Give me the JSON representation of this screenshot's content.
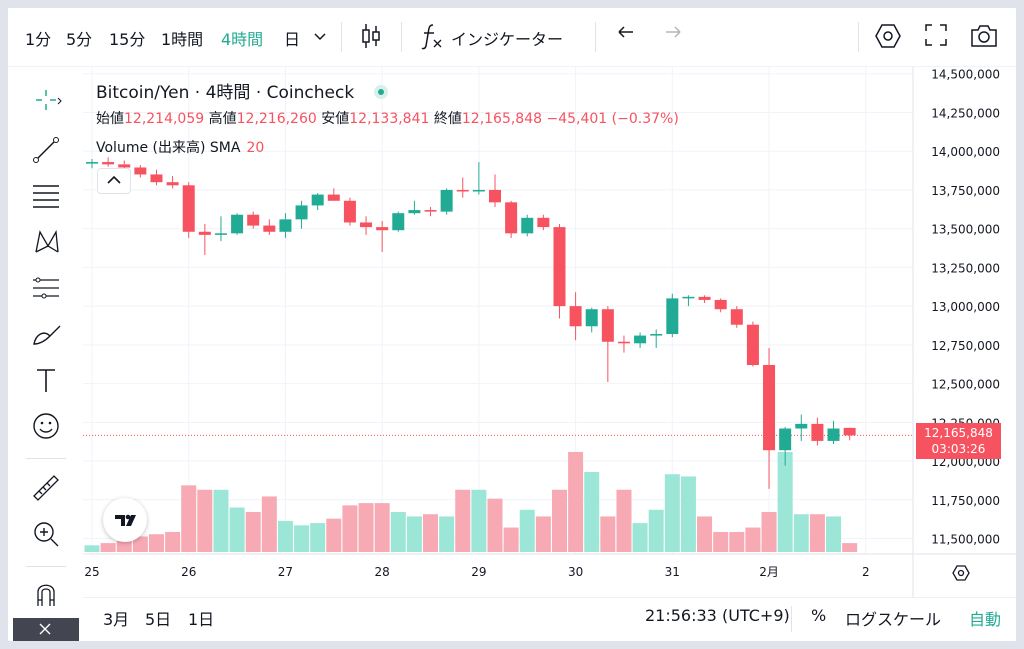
{
  "toolbar": {
    "intervals": [
      "1分",
      "5分",
      "15分",
      "1時間",
      "4時間",
      "日"
    ],
    "active_interval": "4時間",
    "indicators_label": "インジケーター"
  },
  "legend": {
    "symbol": "Bitcoin/Yen · 4時間 · Coincheck",
    "open_label": "始値",
    "open": "12,214,059",
    "high_label": "高値",
    "high": "12,216,260",
    "low_label": "安値",
    "low": "12,133,841",
    "close_label": "終値",
    "close": "12,165,848",
    "change": "−45,401 (−0.37%)",
    "volume_label": "Volume (出来高)",
    "sma_label": "SMA",
    "sma_length": "20"
  },
  "price_scale": {
    "current_price": "12,165,848",
    "countdown": "03:03:26"
  },
  "bottom": {
    "ranges": [
      "3月",
      "5日",
      "1日"
    ],
    "time": "21:56:33 (UTC+9)",
    "percent": "%",
    "log": "ログスケール",
    "auto": "自動"
  },
  "colors": {
    "up": "#22ab94",
    "down": "#f7525f",
    "up_volume": "#9be6d6",
    "down_volume": "#f7a9b4",
    "active": "#22ab94"
  },
  "chart_data": {
    "type": "candlestick",
    "title": "Bitcoin/Yen · 4時間 · Coincheck",
    "ylim": [
      11400000,
      14550000
    ],
    "yticks": [
      14500000,
      14250000,
      14000000,
      13750000,
      13500000,
      13250000,
      13000000,
      12750000,
      12500000,
      12250000,
      12000000,
      11750000,
      11500000
    ],
    "ytick_labels": [
      "14,500,000",
      "14,250,000",
      "14,000,000",
      "13,750,000",
      "13,500,000",
      "13,250,000",
      "13,000,000",
      "12,750,000",
      "12,500,000",
      "12,250,000",
      "12,000,000",
      "11,750,000",
      "11,500,000"
    ],
    "xtick_labels": [
      "25",
      "26",
      "27",
      "28",
      "29",
      "30",
      "31",
      "2月",
      "2"
    ],
    "xtick_index": [
      0,
      6,
      12,
      18,
      24,
      30,
      36,
      42,
      48
    ],
    "current_price": 12165848,
    "candles": [
      {
        "o": 13920000,
        "h": 13950000,
        "l": 13890000,
        "c": 13930000
      },
      {
        "o": 13930000,
        "h": 13960000,
        "l": 13900000,
        "c": 13915000
      },
      {
        "o": 13915000,
        "h": 13940000,
        "l": 13880000,
        "c": 13895000
      },
      {
        "o": 13895000,
        "h": 13910000,
        "l": 13830000,
        "c": 13850000
      },
      {
        "o": 13850000,
        "h": 13880000,
        "l": 13780000,
        "c": 13800000
      },
      {
        "o": 13800000,
        "h": 13840000,
        "l": 13760000,
        "c": 13780000
      },
      {
        "o": 13780000,
        "h": 13800000,
        "l": 13440000,
        "c": 13480000
      },
      {
        "o": 13480000,
        "h": 13530000,
        "l": 13330000,
        "c": 13460000
      },
      {
        "o": 13460000,
        "h": 13580000,
        "l": 13420000,
        "c": 13470000
      },
      {
        "o": 13470000,
        "h": 13600000,
        "l": 13460000,
        "c": 13590000
      },
      {
        "o": 13590000,
        "h": 13610000,
        "l": 13500000,
        "c": 13520000
      },
      {
        "o": 13520000,
        "h": 13560000,
        "l": 13460000,
        "c": 13480000
      },
      {
        "o": 13480000,
        "h": 13600000,
        "l": 13440000,
        "c": 13560000
      },
      {
        "o": 13560000,
        "h": 13680000,
        "l": 13500000,
        "c": 13650000
      },
      {
        "o": 13650000,
        "h": 13730000,
        "l": 13620000,
        "c": 13720000
      },
      {
        "o": 13720000,
        "h": 13760000,
        "l": 13690000,
        "c": 13680000
      },
      {
        "o": 13680000,
        "h": 13700000,
        "l": 13520000,
        "c": 13540000
      },
      {
        "o": 13540000,
        "h": 13580000,
        "l": 13460000,
        "c": 13510000
      },
      {
        "o": 13510000,
        "h": 13550000,
        "l": 13350000,
        "c": 13490000
      },
      {
        "o": 13490000,
        "h": 13610000,
        "l": 13480000,
        "c": 13600000
      },
      {
        "o": 13600000,
        "h": 13680000,
        "l": 13590000,
        "c": 13620000
      },
      {
        "o": 13620000,
        "h": 13640000,
        "l": 13580000,
        "c": 13610000
      },
      {
        "o": 13610000,
        "h": 13760000,
        "l": 13590000,
        "c": 13750000
      },
      {
        "o": 13750000,
        "h": 13830000,
        "l": 13700000,
        "c": 13740000
      },
      {
        "o": 13740000,
        "h": 13930000,
        "l": 13720000,
        "c": 13750000
      },
      {
        "o": 13750000,
        "h": 13850000,
        "l": 13640000,
        "c": 13670000
      },
      {
        "o": 13670000,
        "h": 13680000,
        "l": 13440000,
        "c": 13470000
      },
      {
        "o": 13470000,
        "h": 13590000,
        "l": 13450000,
        "c": 13570000
      },
      {
        "o": 13570000,
        "h": 13590000,
        "l": 13490000,
        "c": 13510000
      },
      {
        "o": 13510000,
        "h": 13530000,
        "l": 12920000,
        "c": 13000000
      },
      {
        "o": 13000000,
        "h": 13090000,
        "l": 12780000,
        "c": 12870000
      },
      {
        "o": 12870000,
        "h": 12990000,
        "l": 12830000,
        "c": 12980000
      },
      {
        "o": 12980000,
        "h": 13000000,
        "l": 12510000,
        "c": 12770000
      },
      {
        "o": 12770000,
        "h": 12810000,
        "l": 12700000,
        "c": 12760000
      },
      {
        "o": 12760000,
        "h": 12830000,
        "l": 12730000,
        "c": 12810000
      },
      {
        "o": 12810000,
        "h": 12850000,
        "l": 12730000,
        "c": 12820000
      },
      {
        "o": 12820000,
        "h": 13080000,
        "l": 12800000,
        "c": 13050000
      },
      {
        "o": 13050000,
        "h": 13070000,
        "l": 13000000,
        "c": 13060000
      },
      {
        "o": 13060000,
        "h": 13070000,
        "l": 13020000,
        "c": 13040000
      },
      {
        "o": 13040000,
        "h": 13050000,
        "l": 12960000,
        "c": 12980000
      },
      {
        "o": 12980000,
        "h": 13000000,
        "l": 12860000,
        "c": 12880000
      },
      {
        "o": 12880000,
        "h": 12900000,
        "l": 12610000,
        "c": 12620000
      },
      {
        "o": 12620000,
        "h": 12730000,
        "l": 11820000,
        "c": 12070000
      },
      {
        "o": 12070000,
        "h": 12220000,
        "l": 11970000,
        "c": 12210000
      },
      {
        "o": 12210000,
        "h": 12300000,
        "l": 12130000,
        "c": 12240000
      },
      {
        "o": 12240000,
        "h": 12280000,
        "l": 12100000,
        "c": 12130000
      },
      {
        "o": 12130000,
        "h": 12260000,
        "l": 12110000,
        "c": 12210000
      },
      {
        "o": 12214059,
        "h": 12216260,
        "l": 12133841,
        "c": 12165848
      }
    ],
    "volumes": [
      3,
      4,
      5,
      7,
      8,
      9,
      30,
      28,
      28,
      20,
      18,
      25,
      14,
      12,
      13,
      15,
      21,
      22,
      22,
      18,
      16,
      17,
      16,
      28,
      28,
      24,
      11,
      19,
      16,
      28,
      45,
      36,
      16,
      28,
      13,
      19,
      35,
      34,
      16,
      9,
      9,
      11,
      18,
      45,
      17,
      17,
      16,
      4
    ]
  }
}
